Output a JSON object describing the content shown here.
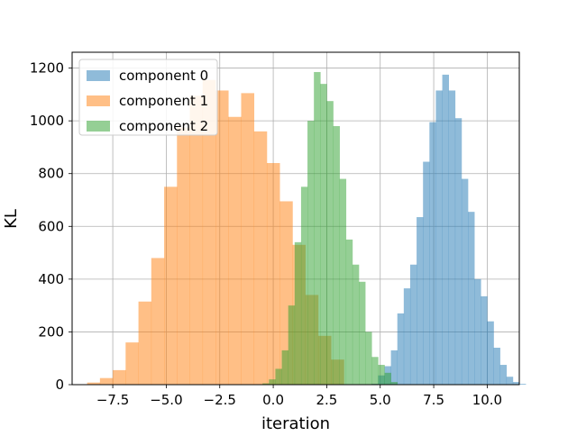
{
  "chart_data": {
    "type": "bar",
    "subtype": "overlapping histograms",
    "xlabel": "iteration",
    "ylabel": "KL",
    "xlim": [
      -9.4,
      11.5
    ],
    "ylim": [
      0,
      1260
    ],
    "x_ticks": [
      -7.5,
      -5.0,
      -2.5,
      0.0,
      2.5,
      5.0,
      7.5,
      10.0
    ],
    "x_tick_labels": [
      "−7.5",
      "−5.0",
      "−2.5",
      "0.0",
      "2.5",
      "5.0",
      "7.5",
      "10.0"
    ],
    "y_ticks": [
      0,
      200,
      400,
      600,
      800,
      1000,
      1200
    ],
    "y_tick_labels": [
      "0",
      "200",
      "400",
      "600",
      "800",
      "1000",
      "1200"
    ],
    "grid": true,
    "legend_position": "top-left",
    "series": [
      {
        "name": "component 0",
        "color": "#1f77b4",
        "alpha": 0.5,
        "bin_start": 4.6,
        "bin_width": 0.3,
        "values": [
          3,
          35,
          70,
          130,
          270,
          365,
          455,
          635,
          845,
          995,
          1115,
          1175,
          1115,
          1010,
          780,
          655,
          400,
          335,
          240,
          140,
          75,
          30,
          10,
          3
        ]
      },
      {
        "name": "component 1",
        "color": "#ff7f0e",
        "alpha": 0.5,
        "bin_start": -8.7,
        "bin_width": 0.6,
        "values": [
          8,
          25,
          55,
          160,
          315,
          480,
          750,
          975,
          1095,
          1155,
          1115,
          1015,
          1105,
          960,
          840,
          695,
          530,
          340,
          185,
          95
        ]
      },
      {
        "name": "component 2",
        "color": "#2ca02c",
        "alpha": 0.5,
        "bin_start": -0.5,
        "bin_width": 0.3,
        "values": [
          5,
          20,
          60,
          130,
          300,
          540,
          750,
          1000,
          1185,
          1140,
          1075,
          980,
          780,
          550,
          455,
          390,
          200,
          105,
          75,
          45,
          10
        ]
      }
    ]
  }
}
